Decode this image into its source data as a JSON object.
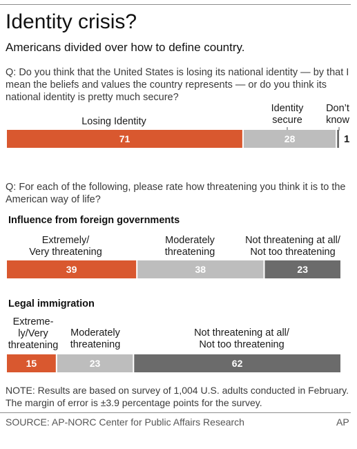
{
  "header": {
    "title": "Identity crisis?",
    "subtitle": "Americans divided over how to define country."
  },
  "questions": {
    "q1": "Q: Do you think that the United States is losing its national identity — by that I mean the beliefs and values the country represents — or do you think its national identity is pretty much secure?",
    "q2": "Q: For each of the following, please rate how threatening you think it is to the American way of life?"
  },
  "colors": {
    "orange": "#d9582f",
    "light_gray": "#bdbdbd",
    "dark_gray": "#6b6b6b"
  },
  "chart_data": [
    {
      "type": "bar",
      "orientation": "horizontal-stacked",
      "title": "",
      "segments": [
        {
          "label": "Losing Identity",
          "value": 71,
          "color": "#d9582f"
        },
        {
          "label": "Identity secure",
          "value": 28,
          "color": "#bdbdbd"
        },
        {
          "label": "Don't know",
          "value": 1,
          "color": "#6b6b6b"
        }
      ]
    },
    {
      "type": "bar",
      "orientation": "horizontal-stacked",
      "title": "Influence from foreign governments",
      "segments": [
        {
          "label": "Extremely/ Very threatening",
          "value": 39,
          "color": "#d9582f"
        },
        {
          "label": "Moderately threatening",
          "value": 38,
          "color": "#bdbdbd"
        },
        {
          "label": "Not threatening at all/ Not too threatening",
          "value": 23,
          "color": "#6b6b6b"
        }
      ]
    },
    {
      "type": "bar",
      "orientation": "horizontal-stacked",
      "title": "Legal immigration",
      "segments": [
        {
          "label": "Extreme-ly/Very threatening",
          "value": 15,
          "color": "#d9582f"
        },
        {
          "label": "Moderately threatening",
          "value": 23,
          "color": "#bdbdbd"
        },
        {
          "label": "Not threatening at all/ Not too threatening",
          "value": 62,
          "color": "#6b6b6b"
        }
      ]
    }
  ],
  "labels": {
    "c1": [
      "Losing Identity",
      "Identity secure",
      "Don't know"
    ],
    "c2": [
      "Extremely/ Very threatening",
      "Moderately threatening",
      "Not threatening at all/ Not too threatening"
    ],
    "c3": [
      "Extreme-ly/Very threatening",
      "Moderately threatening",
      "Not threatening at all/ Not too threatening"
    ]
  },
  "label_lines": {
    "c1_1": "Losing Identity",
    "c1_2a": "Identity",
    "c1_2b": "secure",
    "c1_3a": "Don’t",
    "c1_3b": "know",
    "c2_1a": "Extremely/",
    "c2_1b": "Very threatening",
    "c2_2a": "Moderately",
    "c2_2b": "threatening",
    "c2_3a": "Not threatening at all/",
    "c2_3b": "Not too threatening",
    "c3_1a": "Extreme-",
    "c3_1b": "ly/Very",
    "c3_1c": "threatening",
    "c3_2a": "Moderately",
    "c3_2b": "threatening",
    "c3_3a": "Not threatening at all/",
    "c3_3b": "Not too threatening"
  },
  "footer": {
    "note": "NOTE: Results are based on survey of 1,004 U.S. adults conducted in February. The margin of error  is ±3.9 percentage points for the survey.",
    "source": "SOURCE: AP-NORC Center for Public Affairs Research",
    "credit": "AP"
  }
}
